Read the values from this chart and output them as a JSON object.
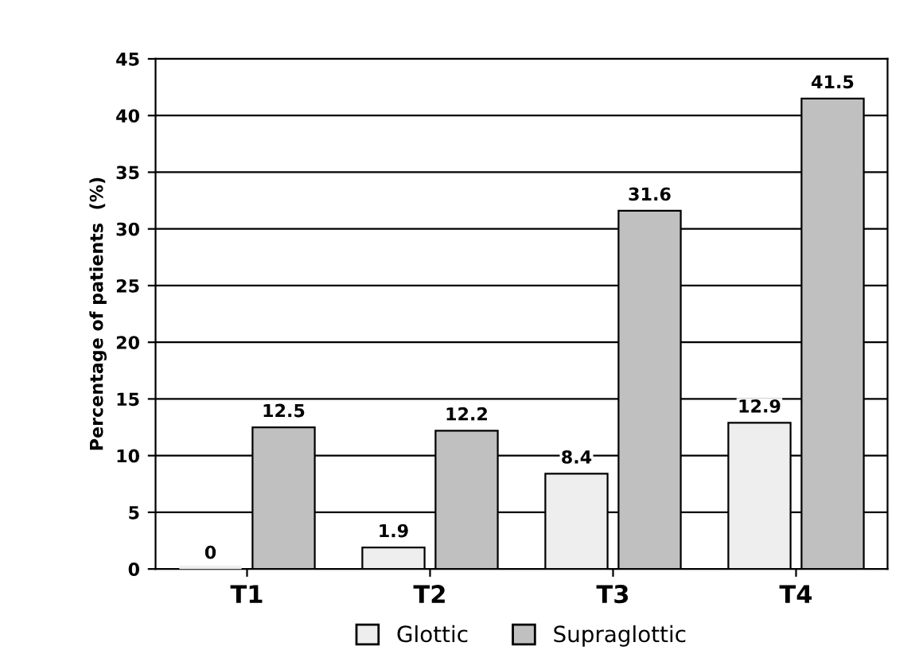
{
  "chart_data": {
    "type": "bar",
    "ylabel": "Percentage of patients  (%)",
    "categories": [
      "T1",
      "T2",
      "T3",
      "T4"
    ],
    "series": [
      {
        "name": "Glottic",
        "color": "#eeeeee",
        "values": [
          0,
          1.9,
          8.4,
          12.9
        ]
      },
      {
        "name": "Supraglottic",
        "color": "#c0c0c0",
        "values": [
          12.5,
          12.2,
          31.6,
          41.5
        ]
      }
    ],
    "ylim": [
      0,
      45
    ],
    "yticks": [
      0,
      5,
      10,
      15,
      20,
      25,
      30,
      35,
      40,
      45
    ],
    "grid": "y",
    "legend": "bottom",
    "data_labels": true
  }
}
